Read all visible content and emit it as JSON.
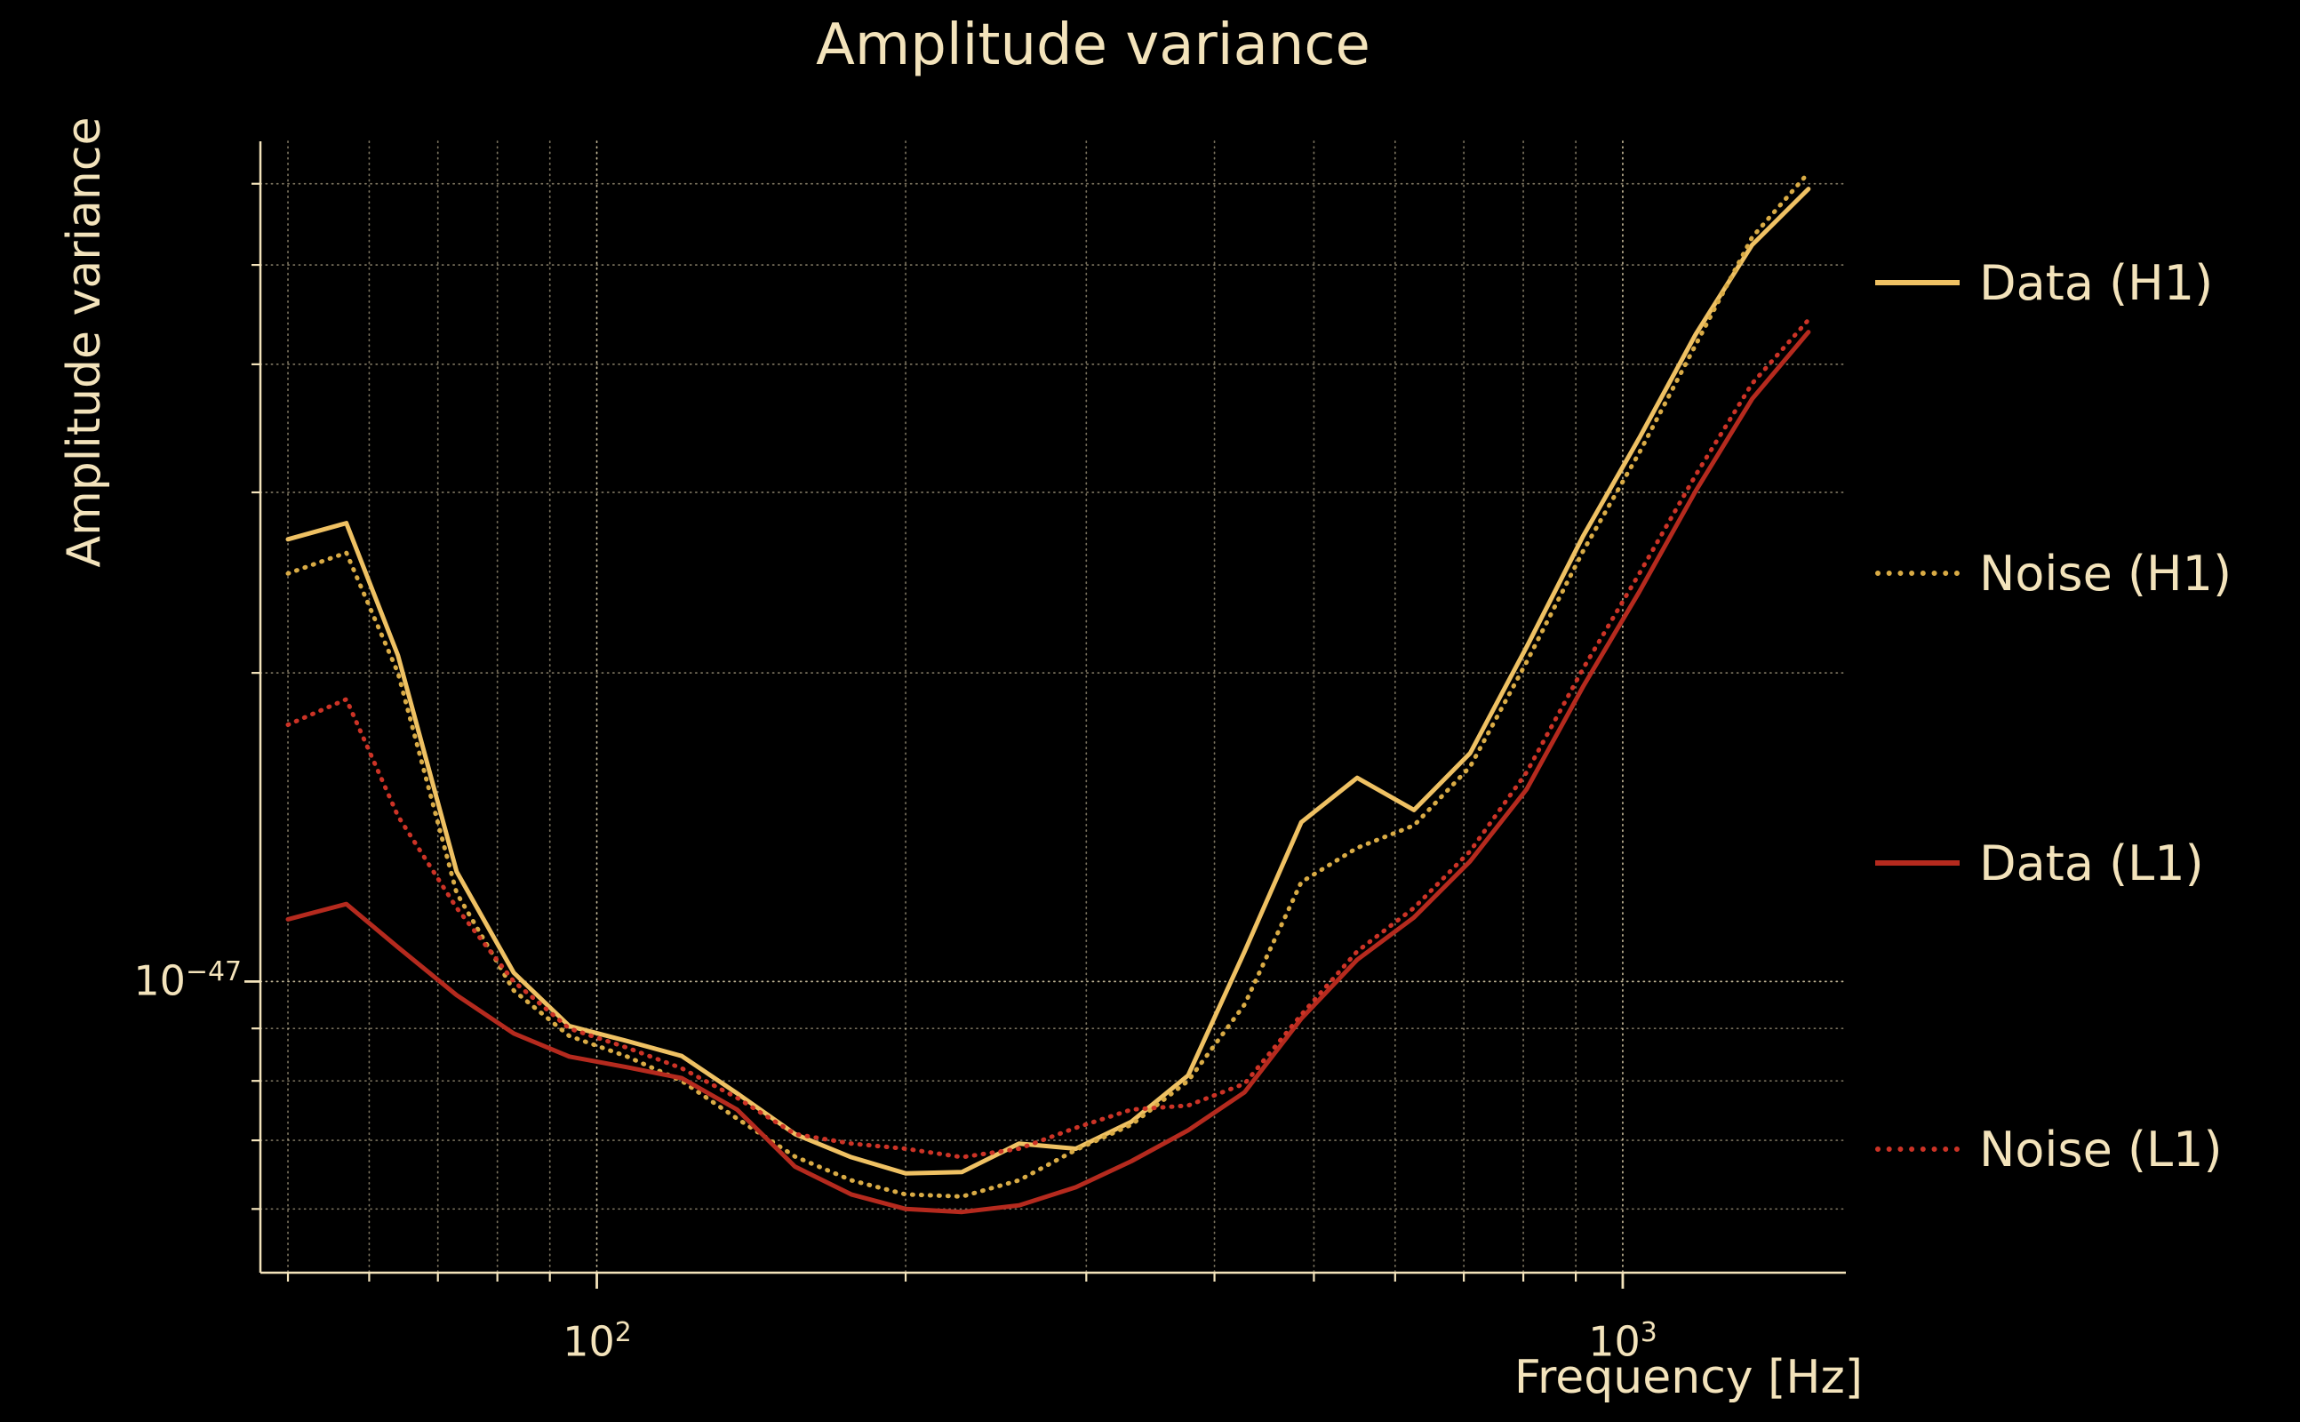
{
  "colors": {
    "background": "#000000",
    "text": "#f3e3bb",
    "grid": "#f3e3bb",
    "gold": "#efc163",
    "gold_dotted": "#d9ab45",
    "red": "#b52a1e",
    "red_dotted": "#cc3326"
  },
  "ticks": {
    "x": [
      {
        "base": "10",
        "exp": "2"
      },
      {
        "base": "10",
        "exp": "3"
      }
    ],
    "y": [
      {
        "base": "10",
        "exp": "−47"
      }
    ]
  },
  "chart_data": {
    "type": "line",
    "title": "Amplitude variance",
    "xlabel": "Frequency [Hz]",
    "ylabel": "Amplitude variance",
    "x_scale": "log",
    "y_scale": "log",
    "xlim": [
      47,
      1650
    ],
    "ylim": [
      5.2e-48,
      6.6e-47
    ],
    "grid": {
      "style": "dotted",
      "x_minor": [
        50,
        60,
        70,
        80,
        90,
        200,
        300,
        400,
        500,
        600,
        700,
        800,
        900
      ],
      "x_major": [
        100,
        1000
      ],
      "y_minor": [
        6e-48,
        7e-48,
        8e-48,
        9e-48,
        2e-47,
        3e-47,
        4e-47,
        5e-47,
        6e-47
      ],
      "y_major": [
        1e-47
      ]
    },
    "legend_position": "right-outside",
    "x": [
      50,
      57,
      64,
      73,
      83,
      94,
      107,
      121,
      137,
      156,
      177,
      200,
      227,
      258,
      293,
      332,
      377,
      428,
      486,
      551,
      626,
      710,
      806,
      915,
      1038,
      1178,
      1337,
      1517
    ],
    "series": [
      {
        "name": "Data (H1)",
        "color": "#efc163",
        "style": "solid",
        "values": [
          2.7e-47,
          2.8e-47,
          2.08e-47,
          1.28e-47,
          1.02e-47,
          9.05e-48,
          8.75e-48,
          8.46e-48,
          7.78e-48,
          7.1e-48,
          6.74e-48,
          6.5e-48,
          6.52e-48,
          6.95e-48,
          6.87e-48,
          7.3e-48,
          8.1e-48,
          1.07e-47,
          1.43e-47,
          1.58e-47,
          1.47e-47,
          1.67e-47,
          2.12e-47,
          2.72e-47,
          3.39e-47,
          4.28e-47,
          5.23e-47,
          5.93e-47
        ]
      },
      {
        "name": "Noise (H1)",
        "color": "#d9ab45",
        "style": "dotted",
        "values": [
          2.5e-47,
          2.62e-47,
          2e-47,
          1.22e-47,
          9.8e-48,
          8.85e-48,
          8.45e-48,
          8e-48,
          7.35e-48,
          6.75e-48,
          6.4e-48,
          6.2e-48,
          6.17e-48,
          6.4e-48,
          6.85e-48,
          7.25e-48,
          8e-48,
          9.5e-48,
          1.25e-47,
          1.35e-47,
          1.42e-47,
          1.62e-47,
          2.05e-47,
          2.63e-47,
          3.28e-47,
          4.18e-47,
          5.32e-47,
          6.15e-47
        ]
      },
      {
        "name": "Data (L1)",
        "color": "#b52a1e",
        "style": "solid",
        "values": [
          1.15e-47,
          1.19e-47,
          1.08e-47,
          9.7e-48,
          8.9e-48,
          8.45e-48,
          8.25e-48,
          8.05e-48,
          7.5e-48,
          6.6e-48,
          6.2e-48,
          6e-48,
          5.96e-48,
          6.05e-48,
          6.3e-48,
          6.68e-48,
          7.16e-48,
          7.8e-48,
          9.2e-48,
          1.05e-47,
          1.155e-47,
          1.31e-47,
          1.54e-47,
          1.94e-47,
          2.4e-47,
          3.01e-47,
          3.7e-47,
          4.3e-47
        ]
      },
      {
        "name": "Noise (L1)",
        "color": "#cc3326",
        "style": "dotted",
        "values": [
          1.78e-47,
          1.885e-47,
          1.45e-47,
          1.18e-47,
          1e-47,
          9e-48,
          8.62e-48,
          8.23e-48,
          7.7e-48,
          7.1e-48,
          6.95e-48,
          6.87e-48,
          6.74e-48,
          6.87e-48,
          7.2e-48,
          7.5e-48,
          7.57e-48,
          7.95e-48,
          9.28e-48,
          1.07e-47,
          1.18e-47,
          1.34e-47,
          1.6e-47,
          2.02e-47,
          2.5e-47,
          3.12e-47,
          3.83e-47,
          4.42e-47
        ]
      }
    ]
  }
}
